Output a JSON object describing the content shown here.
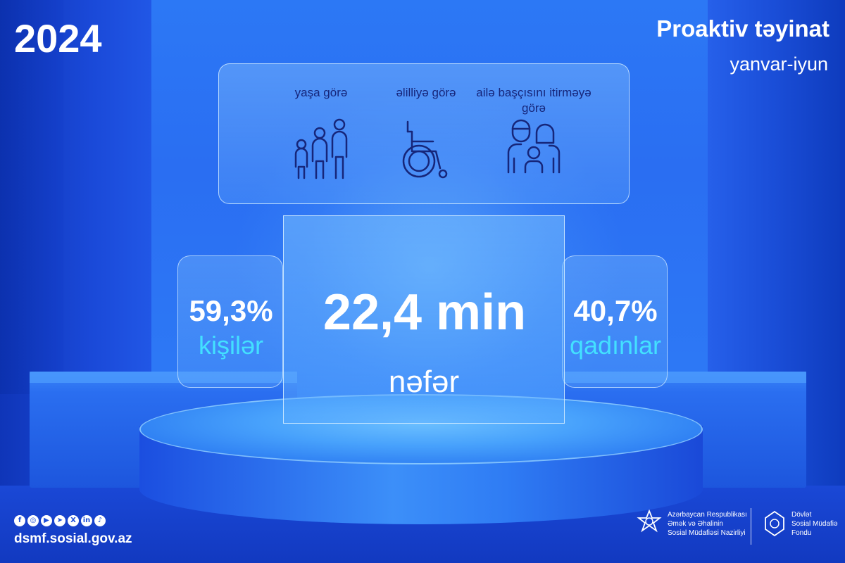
{
  "header": {
    "year": "2024",
    "title": "Proaktiv təyinat",
    "subtitle": "yanvar-iyun"
  },
  "categories": [
    {
      "label": "yaşa görə",
      "icon": "family-age-icon"
    },
    {
      "label": "əlilliyə görə",
      "icon": "wheelchair-icon"
    },
    {
      "label": "ailə başçısını itirməyə görə",
      "icon": "family-parents-child-icon"
    }
  ],
  "main": {
    "value": "22,4 min",
    "unit": "nəfər"
  },
  "left_stat": {
    "percent": "59,3%",
    "label": "kişilər"
  },
  "right_stat": {
    "percent": "40,7%",
    "label": "qadınlar"
  },
  "footer": {
    "socials": [
      "facebook-icon",
      "instagram-icon",
      "youtube-icon",
      "telegram-icon",
      "x-icon",
      "linkedin-icon",
      "tiktok-icon"
    ],
    "website": "dsmf.sosial.gov.az",
    "org1": {
      "line1": "Azərbaycan Respublikası",
      "line2": "Əmək və Əhalinin",
      "line3": "Sosial Müdafiəsi Nazirliyi"
    },
    "org2": {
      "line1": "Dövlət",
      "line2": "Sosial Müdafiə",
      "line3": "Fondu"
    }
  },
  "colors": {
    "accent_cyan": "#43e0ff",
    "icon_navy": "#16267a",
    "background_blue": "#2a6ef2"
  }
}
